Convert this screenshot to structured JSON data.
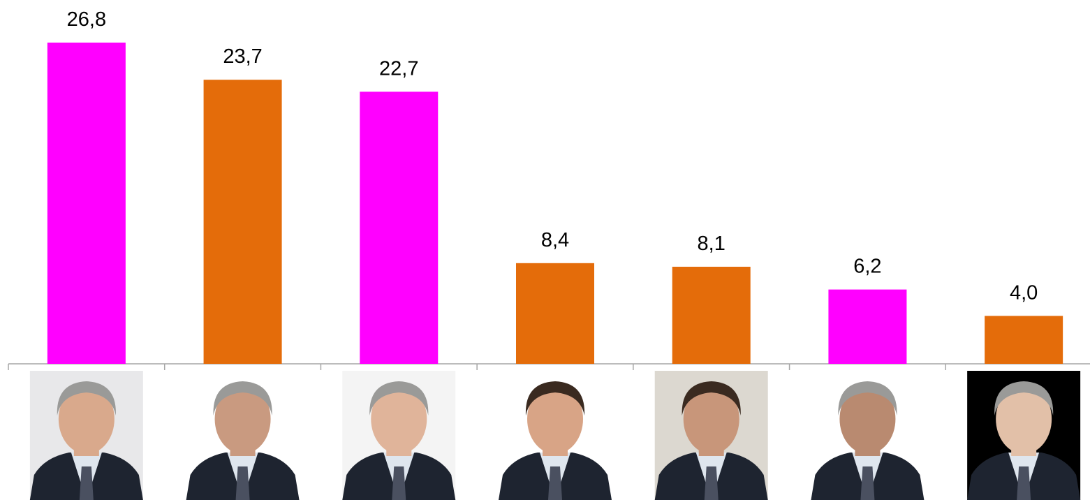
{
  "chart_data": {
    "type": "bar",
    "categories": [
      null,
      null,
      null,
      null,
      null,
      null,
      null
    ],
    "values": [
      26.8,
      23.7,
      22.7,
      8.4,
      8.1,
      6.2,
      4.0
    ],
    "value_labels": [
      "26,8",
      "23,7",
      "22,7",
      "8,4",
      "8,1",
      "6,2",
      "4,0"
    ],
    "colors": [
      "#ff00ff",
      "#e46c0a",
      "#ff00ff",
      "#e46c0a",
      "#e46c0a",
      "#ff00ff",
      "#e46c0a"
    ]
  }
}
